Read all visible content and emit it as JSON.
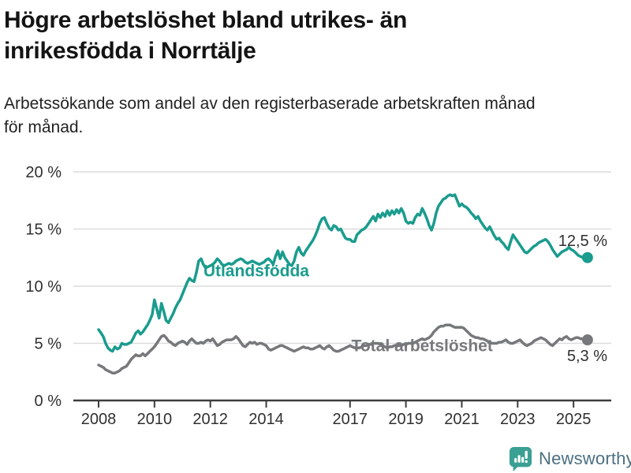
{
  "header": {
    "title_line1": "Högre arbetslöshet bland utrikes- än",
    "title_line2": "inrikesfödda i Norrtälje",
    "subtitle_line1": "Arbetssökande som andel av den registerbaserade arbetskraften månad",
    "subtitle_line2": "för månad."
  },
  "chart_data": {
    "type": "line",
    "title": "Högre arbetslöshet bland utrikes- än inrikesfödda i Norrtälje",
    "subtitle": "Arbetssökande som andel av den registerbaserade arbetskraften månad för månad.",
    "x_unit": "months",
    "start": "2008-01",
    "end": "2025-07",
    "ylim": [
      0,
      20
    ],
    "grid": true,
    "legend_position": "inline-labels",
    "colors": {
      "grid": "#dcdcdc",
      "axis": "#3d3d3d",
      "text": "#303030",
      "teal": "#1a9c8e",
      "gray": "#77787b"
    },
    "y_ticks": [
      {
        "value": 0,
        "label": "0 %"
      },
      {
        "value": 5,
        "label": "5 %"
      },
      {
        "value": 10,
        "label": "10 %"
      },
      {
        "value": 15,
        "label": "15 %"
      },
      {
        "value": 20,
        "label": "20 %"
      }
    ],
    "x_ticks": [
      {
        "year": 2008,
        "label": "2008"
      },
      {
        "year": 2010,
        "label": "2010"
      },
      {
        "year": 2012,
        "label": "2012"
      },
      {
        "year": 2014,
        "label": "2014"
      },
      {
        "year": 2017,
        "label": "2017"
      },
      {
        "year": 2019,
        "label": "2019"
      },
      {
        "year": 2021,
        "label": "2021"
      },
      {
        "year": 2023,
        "label": "2023"
      },
      {
        "year": 2025,
        "label": "2025"
      }
    ],
    "series": [
      {
        "name": "Utlandsfödda",
        "color": "#1a9c8e",
        "start_year": 2008,
        "points_per_year": 12,
        "end_value": 12.5,
        "end_label": "12,5 %",
        "end_label_side": "above",
        "label_anchor": {
          "year": 2011.75,
          "value": 11.35
        },
        "values": [
          6.2,
          5.9,
          5.6,
          5.0,
          4.6,
          4.4,
          4.3,
          4.7,
          4.5,
          4.6,
          5.0,
          4.9,
          4.9,
          5.0,
          5.1,
          5.5,
          5.9,
          6.1,
          5.8,
          6.0,
          6.3,
          6.6,
          7.0,
          7.5,
          8.8,
          8.0,
          7.2,
          8.5,
          7.8,
          7.0,
          6.8,
          7.2,
          7.6,
          8.1,
          8.5,
          8.8,
          9.3,
          9.8,
          10.3,
          10.7,
          10.5,
          10.4,
          11.2,
          12.2,
          12.4,
          11.9,
          11.6,
          11.7,
          11.8,
          11.9,
          12.1,
          12.4,
          12.2,
          11.9,
          11.8,
          11.9,
          12.0,
          11.9,
          12.0,
          12.2,
          12.3,
          12.4,
          12.3,
          12.1,
          12.0,
          12.1,
          12.2,
          12.1,
          12.0,
          11.9,
          12.0,
          12.1,
          12.3,
          12.4,
          12.2,
          11.9,
          12.6,
          13.1,
          12.4,
          13.0,
          12.5,
          12.2,
          11.9,
          11.8,
          12.2,
          13.0,
          13.4,
          12.9,
          12.7,
          13.1,
          13.4,
          13.7,
          14.0,
          14.4,
          14.9,
          15.5,
          15.9,
          16.0,
          15.5,
          15.1,
          14.9,
          15.3,
          15.2,
          14.9,
          15.0,
          14.6,
          14.2,
          14.1,
          14.1,
          13.9,
          13.9,
          14.5,
          14.7,
          14.9,
          15.0,
          15.2,
          15.5,
          15.8,
          16.1,
          15.7,
          16.3,
          16.0,
          16.4,
          16.1,
          16.6,
          16.2,
          16.6,
          16.3,
          16.7,
          16.4,
          16.8,
          16.4,
          15.7,
          15.5,
          15.6,
          15.5,
          16.0,
          16.3,
          16.2,
          16.8,
          16.4,
          15.9,
          15.3,
          14.9,
          15.5,
          16.4,
          17.0,
          17.3,
          17.6,
          17.7,
          17.9,
          18.0,
          17.9,
          18.0,
          17.5,
          17.0,
          17.2,
          17.0,
          16.9,
          16.7,
          16.4,
          16.2,
          15.9,
          16.1,
          15.7,
          15.4,
          15.1,
          14.9,
          15.2,
          14.8,
          14.4,
          14.1,
          14.2,
          13.9,
          13.7,
          13.4,
          13.2,
          13.9,
          14.5,
          14.2,
          13.9,
          13.6,
          13.3,
          13.0,
          12.9,
          13.1,
          13.3,
          13.5,
          13.6,
          13.8,
          13.9,
          14.0,
          14.1,
          13.9,
          13.6,
          13.2,
          12.9,
          12.6,
          12.8,
          13.0,
          13.1,
          13.2,
          13.4,
          13.2,
          13.1,
          12.9,
          12.7,
          12.6,
          12.5,
          12.4,
          12.5
        ]
      },
      {
        "name": "Total arbetslöshet",
        "color": "#77787b",
        "start_year": 2008,
        "points_per_year": 12,
        "end_value": 5.3,
        "end_label": "5,3 %",
        "end_label_side": "below",
        "label_anchor": {
          "year": 2017.05,
          "value": 4.8
        },
        "values": [
          3.1,
          3.0,
          2.9,
          2.7,
          2.6,
          2.5,
          2.4,
          2.4,
          2.5,
          2.6,
          2.8,
          2.9,
          3.0,
          3.3,
          3.6,
          3.8,
          4.0,
          3.9,
          3.9,
          4.1,
          3.9,
          4.1,
          4.3,
          4.5,
          4.7,
          5.0,
          5.3,
          5.6,
          5.7,
          5.5,
          5.2,
          5.1,
          4.9,
          4.8,
          5.0,
          5.1,
          5.2,
          5.1,
          4.9,
          5.2,
          5.4,
          5.2,
          5.0,
          5.0,
          5.1,
          5.0,
          5.2,
          5.3,
          5.2,
          5.4,
          5.1,
          4.8,
          4.9,
          5.1,
          5.2,
          5.3,
          5.3,
          5.3,
          5.4,
          5.6,
          5.4,
          5.1,
          4.8,
          4.7,
          4.9,
          5.1,
          5.0,
          5.1,
          4.9,
          5.0,
          5.0,
          4.9,
          4.8,
          4.5,
          4.4,
          4.5,
          4.6,
          4.7,
          4.8,
          4.8,
          4.7,
          4.6,
          4.5,
          4.4,
          4.3,
          4.4,
          4.5,
          4.6,
          4.7,
          4.6,
          4.6,
          4.5,
          4.5,
          4.6,
          4.7,
          4.8,
          4.6,
          4.5,
          4.7,
          4.8,
          4.6,
          4.4,
          4.3,
          4.3,
          4.4,
          4.5,
          4.6,
          4.7,
          4.8,
          4.7,
          4.6,
          4.6,
          4.6,
          4.7,
          4.8,
          4.8,
          4.9,
          4.9,
          5.0,
          5.0,
          5.0,
          4.9,
          4.8,
          4.7,
          4.6,
          4.7,
          4.7,
          4.8,
          4.8,
          4.9,
          4.8,
          4.9,
          4.9,
          5.0,
          5.0,
          5.0,
          5.1,
          5.2,
          5.3,
          5.4,
          5.3,
          5.4,
          5.5,
          5.7,
          6.0,
          6.2,
          6.4,
          6.5,
          6.5,
          6.6,
          6.6,
          6.6,
          6.5,
          6.4,
          6.4,
          6.4,
          6.4,
          6.3,
          6.1,
          5.9,
          5.7,
          5.6,
          5.5,
          5.5,
          5.4,
          5.4,
          5.3,
          5.2,
          5.1,
          5.0,
          5.0,
          5.0,
          5.1,
          5.1,
          5.2,
          5.3,
          5.1,
          5.0,
          5.0,
          5.1,
          5.2,
          5.3,
          5.1,
          4.9,
          4.8,
          4.9,
          5.0,
          5.2,
          5.3,
          5.4,
          5.5,
          5.4,
          5.3,
          5.1,
          4.9,
          4.8,
          5.0,
          5.2,
          5.4,
          5.3,
          5.5,
          5.6,
          5.4,
          5.3,
          5.4,
          5.5,
          5.5,
          5.4,
          5.4,
          5.3,
          5.3
        ]
      }
    ]
  },
  "footer": {
    "brand": "Newsworthy",
    "brand_color": "#4b7080",
    "icon_color": "#3aa093"
  }
}
